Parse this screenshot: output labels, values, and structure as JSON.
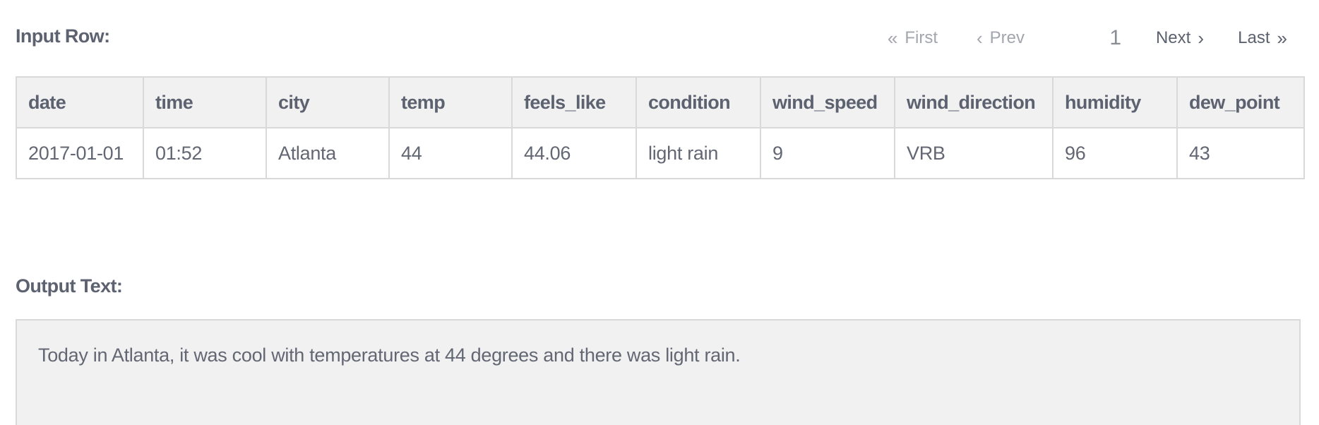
{
  "input_section": {
    "title": "Input Row:"
  },
  "pagination": {
    "first_label": "First",
    "first_icon": "double-chevron-left-icon",
    "prev_label": "Prev",
    "prev_icon": "chevron-left-icon",
    "current_page": "1",
    "next_label": "Next",
    "next_icon": "chevron-right-icon",
    "last_label": "Last",
    "last_icon": "double-chevron-right-icon"
  },
  "table": {
    "columns": [
      "date",
      "time",
      "city",
      "temp",
      "feels_like",
      "condition",
      "wind_speed",
      "wind_direction",
      "humidity",
      "dew_point"
    ],
    "rows": [
      [
        "2017-01-01",
        "01:52",
        "Atlanta",
        "44",
        "44.06",
        "light rain",
        "9",
        "VRB",
        "96",
        "43"
      ]
    ]
  },
  "output_section": {
    "title": "Output Text:",
    "text": "Today in Atlanta, it was cool with temperatures at 44 degrees and there was light rain."
  },
  "colors": {
    "text": "#5d6270",
    "disabled": "#a3a6ae",
    "header_bg": "#f1f1f1",
    "border": "#d9d9d9"
  }
}
